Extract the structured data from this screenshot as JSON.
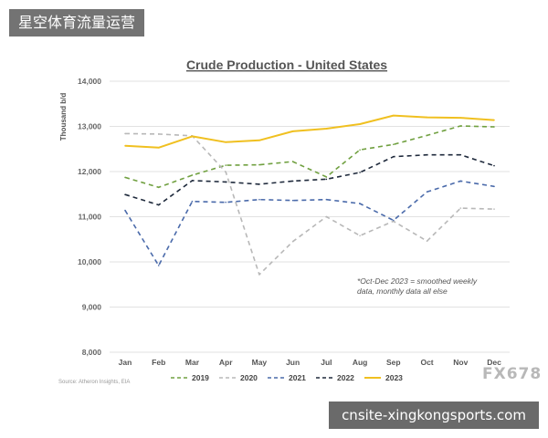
{
  "watermarks": {
    "top_label": "星空体育流量运营",
    "bottom_label": "cnsite-xingkongsports.com",
    "corner_mark": "FX678"
  },
  "source_note": "Source: Atheron Insights, EIA",
  "chart_data": {
    "type": "line",
    "title": "Crude Production - United States",
    "ylabel": "Thousand b/d",
    "xlabel": "",
    "ylim": [
      8000,
      14000
    ],
    "yticks": [
      "8,000",
      "9,000",
      "10,000",
      "11,000",
      "12,000",
      "13,000",
      "14,000"
    ],
    "categories": [
      "Jan",
      "Feb",
      "Mar",
      "Apr",
      "May",
      "Jun",
      "Jul",
      "Aug",
      "Sep",
      "Oct",
      "Nov",
      "Dec"
    ],
    "grid": "horizontal",
    "legend_position": "bottom",
    "annotation": {
      "line1": "*Oct-Dec 2023 = smoothed weekly",
      "line2": "data, monthly data all else"
    },
    "series": [
      {
        "name": "2019",
        "color": "#70a040",
        "dash": "dash",
        "values": [
          11870,
          11650,
          11920,
          12140,
          12150,
          12220,
          11880,
          12480,
          12600,
          12800,
          13010,
          12990
        ]
      },
      {
        "name": "2020",
        "color": "#b8b8b8",
        "dash": "dash",
        "values": [
          12840,
          12830,
          12790,
          11990,
          9720,
          10450,
          11000,
          10580,
          10900,
          10460,
          11190,
          11170
        ]
      },
      {
        "name": "2021",
        "color": "#4a6aaa",
        "dash": "dash",
        "values": [
          11140,
          9920,
          11340,
          11320,
          11380,
          11360,
          11380,
          11290,
          10920,
          11550,
          11790,
          11670
        ]
      },
      {
        "name": "2022",
        "color": "#1f2a3c",
        "dash": "dash",
        "values": [
          11490,
          11260,
          11800,
          11770,
          11720,
          11790,
          11830,
          11980,
          12330,
          12370,
          12370,
          12130
        ]
      },
      {
        "name": "2023",
        "color": "#f0c020",
        "dash": "solid",
        "values": [
          12570,
          12530,
          12780,
          12650,
          12690,
          12890,
          12950,
          13050,
          13240,
          13200,
          13190,
          13140
        ]
      }
    ]
  }
}
